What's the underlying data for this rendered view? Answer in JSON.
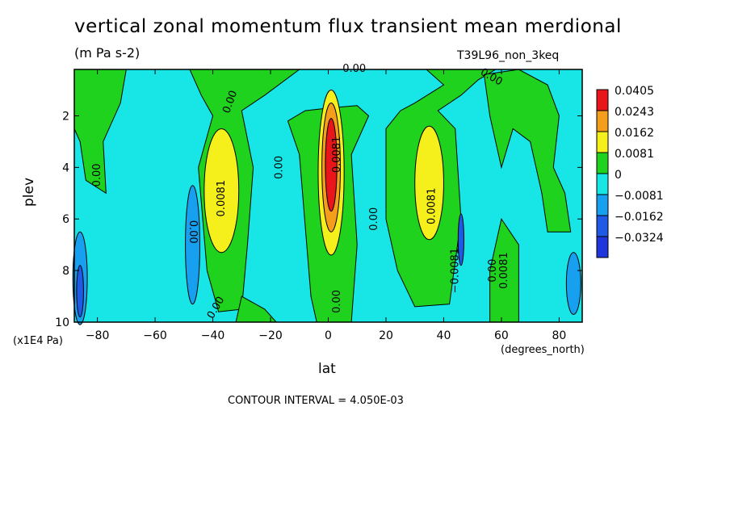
{
  "chart_data": {
    "type": "heatmap",
    "title": "vertical zonal momentum flux transient mean merdional",
    "units": "(m Pa s-2)",
    "run_label": "T39L96_non_3keq",
    "xlabel": "lat",
    "xunit": "(degrees_north)",
    "ylabel": "plev",
    "yunit": "(x1E4 Pa)",
    "xlim": [
      -88,
      88
    ],
    "ylim": [
      10,
      0.2
    ],
    "xticks": [
      -80,
      -60,
      -40,
      -20,
      0,
      20,
      40,
      60,
      80
    ],
    "yticks": [
      2,
      4,
      6,
      8,
      10
    ],
    "contour_interval_text": "CONTOUR INTERVAL = 4.050E-03",
    "legend": {
      "placement": "right",
      "levels": [
        "0.0405",
        "0.0243",
        "0.0162",
        "0.0081",
        "0",
        "−0.0081",
        "−0.0162",
        "−0.0324"
      ],
      "colors": [
        "#e8161b",
        "#f59e1c",
        "#f5f01c",
        "#1ed21e",
        "#18e6e6",
        "#18a0f0",
        "#1e5ae6",
        "#1e36dc"
      ]
    },
    "features": [
      {
        "kind": "positive-max",
        "lat": 0,
        "plev": 4.2,
        "value": 0.0405
      },
      {
        "kind": "positive-max",
        "lat": -37,
        "plev": 4.8,
        "value": 0.0162
      },
      {
        "kind": "positive-max",
        "lat": 35,
        "plev": 4.5,
        "value": 0.0162
      },
      {
        "kind": "negative-min",
        "lat": -86,
        "plev": 8.2,
        "value": -0.0324
      },
      {
        "kind": "negative-min",
        "lat": -47,
        "plev": 7.0,
        "value": -0.0162
      },
      {
        "kind": "negative-min",
        "lat": 85,
        "plev": 8.5,
        "value": -0.0162
      }
    ],
    "contour_labels": [
      "0.00",
      "0.00",
      "0.00",
      "0.00",
      "0.00",
      "0.00",
      "0.00",
      "0.00",
      "0.00",
      "0.00",
      "0.0081",
      "0.0081",
      "0.0081",
      "−0.0081",
      "0.0081"
    ]
  }
}
